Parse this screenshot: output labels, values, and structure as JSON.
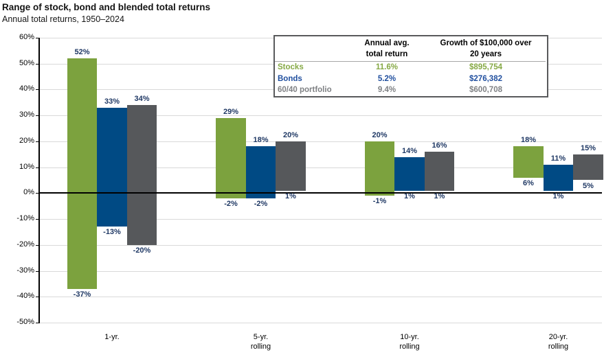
{
  "colors": {
    "stocks_bar": "#7CA23E",
    "bonds_bar": "#004A84",
    "blended_bar": "#56585B",
    "stocks_text": "#86A945",
    "bonds_text": "#1F4E9E",
    "blended_text": "#7F8184",
    "value_label": "#1F3864",
    "grid": "#D9D9D9",
    "axis": "#000000",
    "table_border": "#58595B"
  },
  "table": {
    "headers": {
      "col1": "",
      "col2": "Annual avg.\ntotal return",
      "col3": "Growth of $100,000 over\n20 years"
    },
    "rows": [
      {
        "label": "Stocks",
        "annual_avg_return": "11.6%",
        "growth_value": "$895,754"
      },
      {
        "label": "Bonds",
        "annual_avg_return": "5.2%",
        "growth_value": "$276,382"
      },
      {
        "label": "60/40 portfolio",
        "annual_avg_return": "9.4%",
        "growth_value": "$600,708"
      }
    ]
  },
  "chart_data": {
    "type": "bar",
    "subtype": "floating-range-columns",
    "title": "Range of stock, bond and blended total returns",
    "subtitle": "Annual total returns, 1950–2024",
    "categories": [
      "1-yr.",
      "5-yr.\nrolling",
      "10-yr.\nrolling",
      "20-yr.\nrolling"
    ],
    "series": [
      {
        "name": "Stocks",
        "color_key": "stocks",
        "ranges_min_max_pct": [
          [
            -37,
            52
          ],
          [
            -2,
            29
          ],
          [
            -1,
            20
          ],
          [
            6,
            18
          ]
        ]
      },
      {
        "name": "Bonds",
        "color_key": "bonds",
        "ranges_min_max_pct": [
          [
            -13,
            33
          ],
          [
            -2,
            18
          ],
          [
            1,
            14
          ],
          [
            1,
            11
          ]
        ]
      },
      {
        "name": "60/40 portfolio",
        "color_key": "blended",
        "ranges_min_max_pct": [
          [
            -20,
            34
          ],
          [
            1,
            20
          ],
          [
            1,
            16
          ],
          [
            5,
            15
          ]
        ]
      }
    ],
    "ylim": [
      -50,
      60
    ],
    "ytick_step": 10,
    "ytick_suffix": "%",
    "value_label_suffix": "%",
    "grid": true,
    "legend_position": "table-top-right"
  }
}
